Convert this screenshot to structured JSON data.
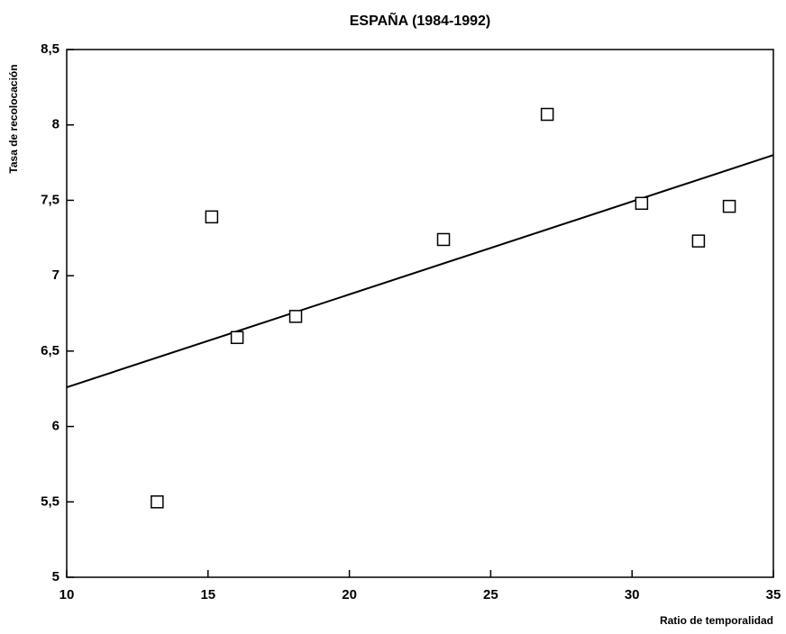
{
  "chart_data": {
    "type": "scatter",
    "title": "ESPAÑA (1984-1992)",
    "xlabel": "Ratio de temporalidad",
    "ylabel": "Tasa de recolocación",
    "series": [
      {
        "name": "España",
        "color": "#000000",
        "x": [
          13.2,
          15.13,
          16.03,
          18.1,
          23.33,
          27.0,
          30.34,
          32.35,
          33.44
        ],
        "values": [
          5.5,
          7.39,
          6.59,
          6.73,
          7.24,
          8.07,
          7.48,
          7.23,
          7.46
        ]
      }
    ],
    "trend_line": {
      "x": [
        10,
        35
      ],
      "values": [
        6.26,
        7.8
      ]
    },
    "xlim": [
      10,
      35
    ],
    "xticks": [
      10,
      15,
      20,
      25,
      30,
      35
    ],
    "ylim": [
      5,
      8.5
    ],
    "yticks": [
      5,
      {
        "value": 5.5,
        "label": "5,5"
      },
      6,
      {
        "value": 6.5,
        "label": "6,5"
      },
      7,
      {
        "value": 7.5,
        "label": "7,5"
      },
      8,
      {
        "value": 8.5,
        "label": "8,5"
      }
    ]
  }
}
